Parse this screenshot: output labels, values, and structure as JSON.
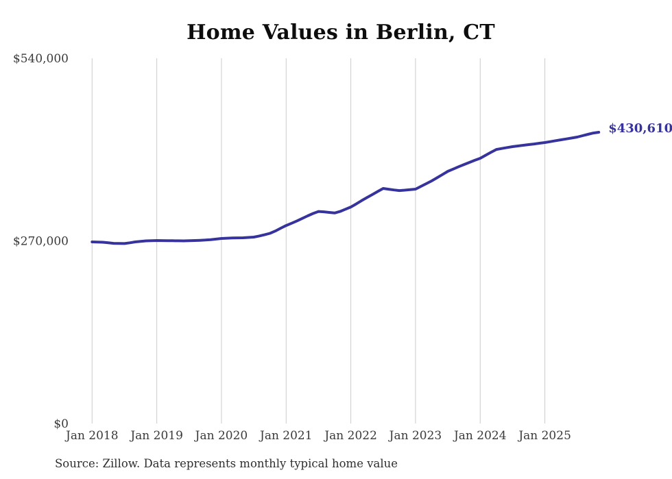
{
  "chart_data": {
    "type": "line",
    "title": "Home Values in Berlin, CT",
    "source": "Source: Zillow. Data represents monthly typical home value",
    "end_label": "$430,610",
    "latest_value": 430610,
    "latest_month": "2025-11",
    "grid": "vertical-only",
    "legend": "none",
    "ylim": [
      0,
      540000
    ],
    "y_ticks": [
      {
        "label": "$0",
        "value": 0
      },
      {
        "label": "$270,000",
        "value": 270000
      },
      {
        "label": "$540,000",
        "value": 540000
      }
    ],
    "x_tick_labels": [
      "Jan 2018",
      "Jan 2019",
      "Jan 2020",
      "Jan 2021",
      "Jan 2022",
      "Jan 2023",
      "Jan 2024",
      "Jan 2025"
    ],
    "months": [
      "2018-01",
      "2018-02",
      "2018-03",
      "2018-04",
      "2018-05",
      "2018-06",
      "2018-07",
      "2018-08",
      "2018-09",
      "2018-10",
      "2018-11",
      "2018-12",
      "2019-01",
      "2019-02",
      "2019-03",
      "2019-04",
      "2019-05",
      "2019-06",
      "2019-07",
      "2019-08",
      "2019-09",
      "2019-10",
      "2019-11",
      "2019-12",
      "2020-01",
      "2020-02",
      "2020-03",
      "2020-04",
      "2020-05",
      "2020-06",
      "2020-07",
      "2020-08",
      "2020-09",
      "2020-10",
      "2020-11",
      "2020-12",
      "2021-01",
      "2021-02",
      "2021-03",
      "2021-04",
      "2021-05",
      "2021-06",
      "2021-07",
      "2021-08",
      "2021-09",
      "2021-10",
      "2021-11",
      "2021-12",
      "2022-01",
      "2022-02",
      "2022-03",
      "2022-04",
      "2022-05",
      "2022-06",
      "2022-07",
      "2022-08",
      "2022-09",
      "2022-10",
      "2022-11",
      "2022-12",
      "2023-01",
      "2023-02",
      "2023-03",
      "2023-04",
      "2023-05",
      "2023-06",
      "2023-07",
      "2023-08",
      "2023-09",
      "2023-10",
      "2023-11",
      "2023-12",
      "2024-01",
      "2024-02",
      "2024-03",
      "2024-04",
      "2024-05",
      "2024-06",
      "2024-07",
      "2024-08",
      "2024-09",
      "2024-10",
      "2024-11",
      "2024-12",
      "2025-01",
      "2025-02",
      "2025-03",
      "2025-04",
      "2025-05",
      "2025-06",
      "2025-07",
      "2025-08",
      "2025-09",
      "2025-10",
      "2025-11"
    ],
    "series": [
      {
        "name": "Typical home value",
        "color": "#37339d",
        "values": [
          268500,
          268200,
          268000,
          267200,
          266400,
          266200,
          266000,
          267200,
          268500,
          269300,
          270000,
          270300,
          270500,
          270400,
          270300,
          270200,
          270100,
          270000,
          270200,
          270500,
          270800,
          271200,
          271800,
          272600,
          273500,
          274000,
          274300,
          274500,
          274600,
          275100,
          275600,
          277200,
          279000,
          281100,
          284600,
          288700,
          292700,
          296000,
          299500,
          303200,
          307000,
          310500,
          313500,
          313000,
          312000,
          311200,
          313500,
          316800,
          320000,
          324600,
          329500,
          334000,
          338500,
          343000,
          347500,
          346400,
          345300,
          344400,
          345000,
          345800,
          346500,
          350500,
          354600,
          358600,
          363300,
          368100,
          372800,
          376200,
          379600,
          382900,
          386000,
          389100,
          392100,
          396500,
          400900,
          405200,
          406600,
          408000,
          409300,
          410300,
          411300,
          412300,
          413300,
          414400,
          415400,
          416700,
          418100,
          419400,
          420800,
          422100,
          423500,
          425500,
          427500,
          429500,
          430610
        ]
      }
    ]
  },
  "colors": {
    "line": "#37339d",
    "end_label": "#37339d",
    "grid": "#cbcbcb",
    "axis_label": "#3a3a3a",
    "title": "#0d0d0d",
    "source_text": "#2e2e2e"
  }
}
